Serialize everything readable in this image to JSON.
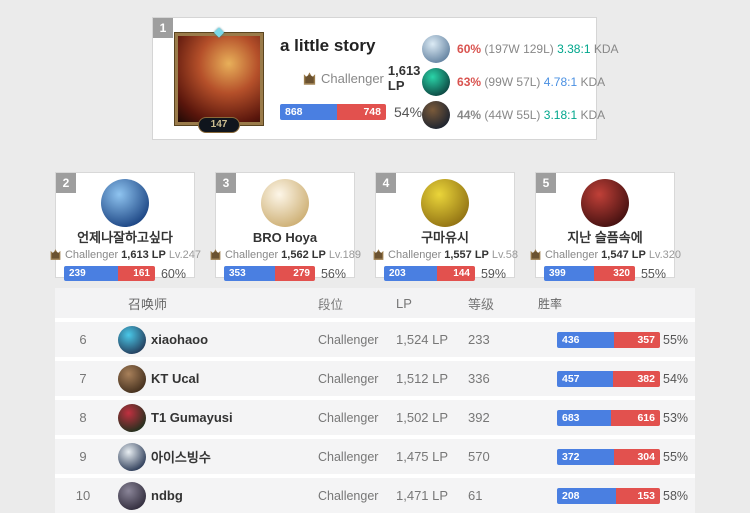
{
  "colors": {
    "win_blue": "#4a7fe1",
    "loss_red": "#e2514e",
    "hot_rate_red": "#d9534f",
    "kda_teal": "#00a68c",
    "kda_blue": "#4a90e2",
    "neutral_gray": "#888888"
  },
  "top_player": {
    "rank": "1",
    "name": "a little story",
    "tier": "Challenger",
    "lp": "1,613 LP",
    "level": "147",
    "wins": "868",
    "losses": "748",
    "win_pct": 53.7,
    "winrate": "54%",
    "champions": [
      {
        "winrate": "60%",
        "winrate_color": "#d9534f",
        "record": "(197W 129L)",
        "kda": "3.38:1",
        "kda_color": "#00a68c",
        "kda_suffix": "KDA",
        "grad": [
          "#5a7a9a",
          "#dcebf5"
        ]
      },
      {
        "winrate": "63%",
        "winrate_color": "#d9534f",
        "record": "(99W 57L)",
        "kda": "4.78:1",
        "kda_color": "#4a90e2",
        "kda_suffix": "KDA",
        "grad": [
          "#0a3a38",
          "#2ad4a8"
        ]
      },
      {
        "winrate": "44%",
        "winrate_color": "#888888",
        "record": "(44W 55L)",
        "kda": "3.18:1",
        "kda_color": "#00a68c",
        "kda_suffix": "KDA",
        "grad": [
          "#141e2e",
          "#7a5a3a"
        ]
      }
    ]
  },
  "mini_cards": [
    {
      "rank": "2",
      "name": "언제나잘하고싶다",
      "tier": "Challenger",
      "lp": "1,613 LP",
      "level": "Lv.247",
      "wins": "239",
      "losses": "161",
      "win_pct": 59.8,
      "winrate": "60%",
      "grad": [
        "#123a7a",
        "#8fc4f0"
      ]
    },
    {
      "rank": "3",
      "name": "BRO Hoya",
      "tier": "Challenger",
      "lp": "1,562 LP",
      "level": "Lv.189",
      "wins": "353",
      "losses": "279",
      "win_pct": 55.9,
      "winrate": "56%",
      "grad": [
        "#c9a96a",
        "#fdf6e8"
      ]
    },
    {
      "rank": "4",
      "name": "구마유시",
      "tier": "Challenger",
      "lp": "1,557 LP",
      "level": "Lv.58",
      "wins": "203",
      "losses": "144",
      "win_pct": 58.5,
      "winrate": "59%",
      "grad": [
        "#8a6a10",
        "#ead53a"
      ]
    },
    {
      "rank": "5",
      "name": "지난 슬픔속에",
      "tier": "Challenger",
      "lp": "1,547 LP",
      "level": "Lv.320",
      "wins": "399",
      "losses": "320",
      "win_pct": 55.5,
      "winrate": "55%",
      "grad": [
        "#3a0d0d",
        "#c04038"
      ]
    }
  ],
  "table": {
    "headers": {
      "summoner": "召唤师",
      "tier": "段位",
      "lp": "LP",
      "level": "等级",
      "winrate": "胜率"
    },
    "rows": [
      {
        "rank": "6",
        "name": "xiaohaoo",
        "tier": "Challenger",
        "lp": "1,524 LP",
        "level": "233",
        "wins": "436",
        "losses": "357",
        "win_pct": 55.0,
        "winrate": "55%",
        "grad": [
          "#20304f",
          "#4ac8e8"
        ]
      },
      {
        "rank": "7",
        "name": "KT Ucal",
        "tier": "Challenger",
        "lp": "1,512 LP",
        "level": "336",
        "wins": "457",
        "losses": "382",
        "win_pct": 54.5,
        "winrate": "54%",
        "grad": [
          "#3a2818",
          "#a8805a"
        ]
      },
      {
        "rank": "8",
        "name": "T1 Gumayusi",
        "tier": "Challenger",
        "lp": "1,502 LP",
        "level": "392",
        "wins": "683",
        "losses": "616",
        "win_pct": 52.6,
        "winrate": "53%",
        "grad": [
          "#12301a",
          "#c03040"
        ]
      },
      {
        "rank": "9",
        "name": "아이스빙수",
        "tier": "Challenger",
        "lp": "1,475 LP",
        "level": "570",
        "wins": "372",
        "losses": "304",
        "win_pct": 55.0,
        "winrate": "55%",
        "grad": [
          "#1c2c4a",
          "#e8eef2"
        ]
      },
      {
        "rank": "10",
        "name": "ndbg",
        "tier": "Challenger",
        "lp": "1,471 LP",
        "level": "61",
        "wins": "208",
        "losses": "153",
        "win_pct": 57.6,
        "winrate": "58%",
        "grad": [
          "#2a2535",
          "#8a8598"
        ]
      }
    ]
  }
}
